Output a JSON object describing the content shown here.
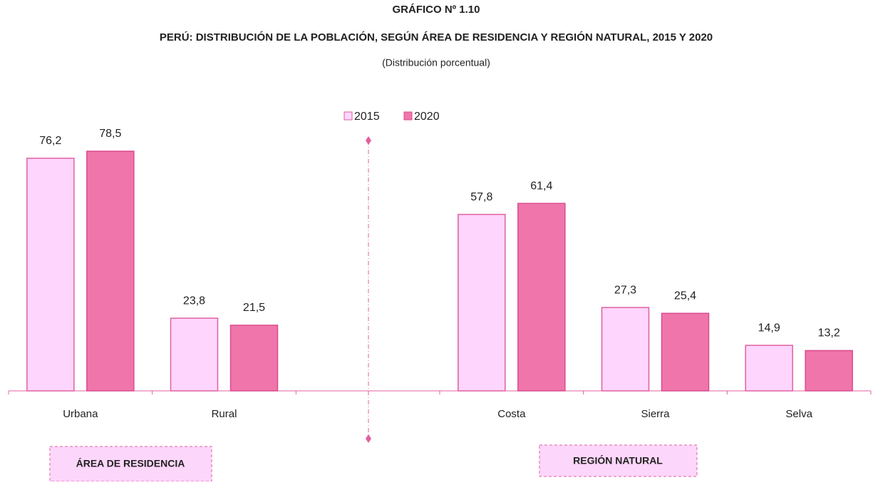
{
  "chart_data": {
    "type": "bar",
    "title": "GRÁFICO Nº 1.10",
    "subtitle": "PERÚ: DISTRIBUCIÓN DE LA POBLACIÓN, SEGÚN ÁREA DE RESIDENCIA Y REGIÓN NATURAL, 2015 Y 2020",
    "note": "(Distribución porcentual)",
    "categories": [
      "Urbana",
      "Rural",
      null,
      "Costa",
      "Sierra",
      "Selva"
    ],
    "series": [
      {
        "name": "2015",
        "color": "#fdd5fd",
        "values": [
          76.2,
          23.8,
          null,
          57.8,
          27.3,
          14.9
        ],
        "value_labels": [
          "76,2",
          "23,8",
          null,
          "57,8",
          "27,3",
          "14,9"
        ]
      },
      {
        "name": "2020",
        "color": "#f075aa",
        "values": [
          78.5,
          21.5,
          null,
          61.4,
          25.4,
          13.2
        ],
        "value_labels": [
          "78,5",
          "21,5",
          null,
          "61,4",
          "25,4",
          "13,2"
        ]
      }
    ],
    "annotations": [
      "ÁREA DE RESIDENCIA",
      "REGIÓN NATURAL"
    ]
  }
}
